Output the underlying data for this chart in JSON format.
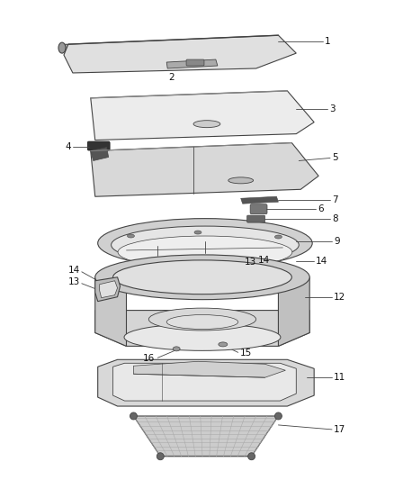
{
  "bg_color": "#ffffff",
  "line_color": "#444444",
  "label_color": "#111111",
  "fig_width": 4.38,
  "fig_height": 5.33,
  "dpi": 100
}
